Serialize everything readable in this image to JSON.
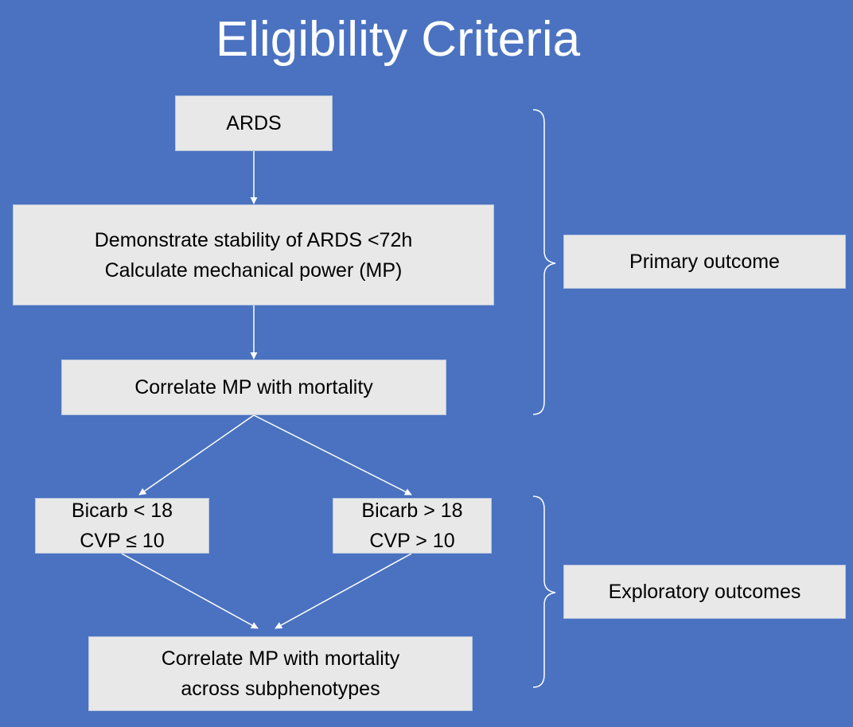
{
  "title": "Eligibility Criteria",
  "nodes": {
    "ards": "ARDS",
    "stability": {
      "line1": "Demonstrate stability of ARDS <72h",
      "line2": "Calculate mechanical power (MP)"
    },
    "correlate": "Correlate MP with mortality",
    "group_low": {
      "line1": "Bicarb < 18",
      "line2": "CVP ≤ 10"
    },
    "group_high": {
      "line1": "Bicarb > 18",
      "line2": "CVP > 10"
    },
    "subphenotypes": {
      "line1": "Correlate MP with mortality",
      "line2": "across subphenotypes"
    }
  },
  "labels": {
    "primary": "Primary outcome",
    "exploratory": "Exploratory outcomes"
  },
  "colors": {
    "background": "#4a72c0",
    "box_fill": "#e8e8e8",
    "connector": "#ffffff"
  }
}
